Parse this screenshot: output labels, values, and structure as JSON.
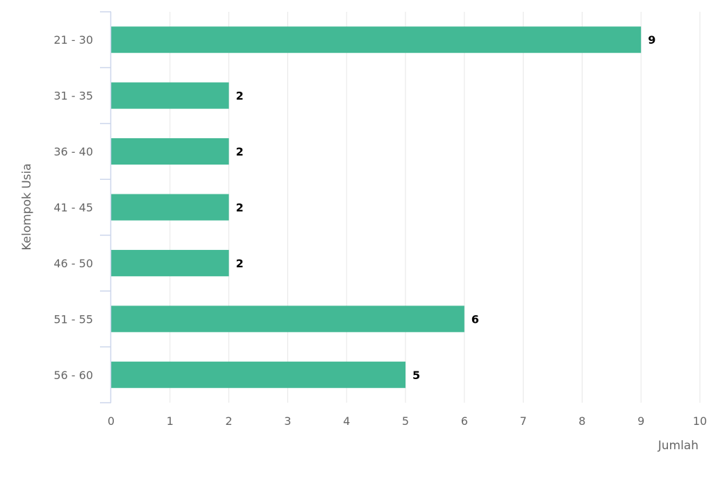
{
  "chart_data": {
    "type": "bar",
    "orientation": "horizontal",
    "title": "",
    "xlabel": "Jumlah",
    "ylabel": "Kelompok Usia",
    "categories": [
      "21 - 30",
      "31 - 35",
      "36 - 40",
      "41 - 45",
      "46 - 50",
      "51 - 55",
      "56 - 60"
    ],
    "values": [
      9,
      2,
      2,
      2,
      2,
      6,
      5
    ],
    "xlim": [
      0,
      10
    ],
    "xticks": [
      0,
      1,
      2,
      3,
      4,
      5,
      6,
      7,
      8,
      9,
      10
    ],
    "grid": "vertical",
    "legend": "none",
    "data_labels": true,
    "colors": {
      "bar": "#43b995",
      "grid": "#e6e6e6",
      "axis": "#ccd6eb",
      "tick_text": "#666666",
      "label_text": "#000000"
    }
  }
}
